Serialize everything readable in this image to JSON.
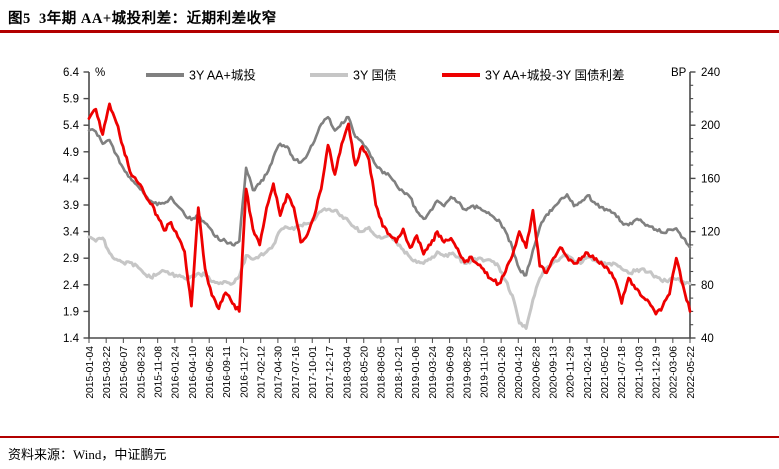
{
  "title": "图5  3年期 AA+城投利差：近期利差收窄",
  "source": "资料来源：Wind，中证鹏元",
  "colors": {
    "rule_red": "#b20000",
    "axis": "#4a4a4a",
    "series_citytou": "#808080",
    "series_treasury": "#c6c6c6",
    "series_spread": "#ee0000"
  },
  "chart_data": {
    "type": "line",
    "title": "",
    "left_axis": {
      "label": "%",
      "min": 1.4,
      "max": 6.4,
      "tick_step": 0.5,
      "ticks": [
        "6.4",
        "5.9",
        "5.4",
        "4.9",
        "4.4",
        "3.9",
        "3.4",
        "2.9",
        "2.4",
        "1.9",
        "1.4"
      ]
    },
    "right_axis": {
      "label": "BP",
      "min": 40,
      "max": 240,
      "tick_step": 40,
      "minor_step": 10,
      "ticks": [
        "240",
        "200",
        "160",
        "120",
        "80",
        "40"
      ]
    },
    "x_tick_labels": [
      "2015-01-04",
      "2015-03-22",
      "2015-06-07",
      "2015-08-23",
      "2015-11-08",
      "2016-01-24",
      "2016-04-10",
      "2016-06-26",
      "2016-09-11",
      "2016-11-27",
      "2017-02-12",
      "2017-04-30",
      "2017-07-16",
      "2017-10-01",
      "2017-12-17",
      "2018-03-04",
      "2018-05-20",
      "2018-08-05",
      "2018-10-21",
      "2019-01-06",
      "2019-03-24",
      "2019-06-09",
      "2019-08-25",
      "2019-11-10",
      "2020-01-26",
      "2020-04-12",
      "2020-06-28",
      "2020-09-13",
      "2020-11-29",
      "2021-02-14",
      "2021-05-02",
      "2021-07-18",
      "2021-10-03",
      "2021-12-19",
      "2022-03-06",
      "2022-05-22"
    ],
    "x_months": "monthly samples 2015-01 .. 2022-05 (89 points, read off chart)",
    "legend_position": "top",
    "grid": false,
    "series": [
      {
        "name": "3Y AA+城投",
        "axis": "left",
        "color": "#808080",
        "width": 2.6,
        "values": [
          5.3,
          5.28,
          5.05,
          5.12,
          4.85,
          4.6,
          4.42,
          4.28,
          4.12,
          3.98,
          3.9,
          3.93,
          4.05,
          3.88,
          3.72,
          3.62,
          3.7,
          3.56,
          3.42,
          3.25,
          3.22,
          3.15,
          3.22,
          4.6,
          4.18,
          4.3,
          4.48,
          4.8,
          5.05,
          5.0,
          4.75,
          4.7,
          4.85,
          5.1,
          5.42,
          5.55,
          5.3,
          5.45,
          5.55,
          5.18,
          5.08,
          4.9,
          4.65,
          4.5,
          4.45,
          4.28,
          4.15,
          4.05,
          3.78,
          3.64,
          3.8,
          3.98,
          3.88,
          4.05,
          3.95,
          3.82,
          3.88,
          3.85,
          3.78,
          3.7,
          3.62,
          3.4,
          3.1,
          2.7,
          2.58,
          3.05,
          3.48,
          3.72,
          3.85,
          4.0,
          4.1,
          3.88,
          3.95,
          4.08,
          3.95,
          3.86,
          3.8,
          3.74,
          3.58,
          3.52,
          3.62,
          3.58,
          3.5,
          3.44,
          3.38,
          3.44,
          3.46,
          3.28,
          3.1
        ]
      },
      {
        "name": "3Y 国债",
        "axis": "left",
        "color": "#c6c6c6",
        "width": 3.0,
        "values": [
          3.3,
          3.22,
          3.28,
          3.0,
          2.88,
          2.82,
          2.82,
          2.76,
          2.62,
          2.54,
          2.6,
          2.66,
          2.6,
          2.56,
          2.52,
          2.56,
          2.62,
          2.58,
          2.46,
          2.42,
          2.46,
          2.42,
          2.56,
          2.95,
          2.88,
          2.95,
          3.02,
          3.15,
          3.42,
          3.48,
          3.44,
          3.52,
          3.55,
          3.62,
          3.78,
          3.82,
          3.8,
          3.7,
          3.6,
          3.46,
          3.4,
          3.48,
          3.32,
          3.28,
          3.34,
          3.21,
          3.06,
          2.92,
          2.82,
          2.8,
          2.88,
          3.02,
          2.94,
          2.98,
          2.92,
          2.8,
          2.86,
          2.9,
          2.86,
          2.84,
          2.74,
          2.48,
          2.2,
          1.68,
          1.58,
          2.12,
          2.52,
          2.72,
          2.82,
          2.9,
          2.96,
          2.84,
          2.8,
          2.92,
          2.86,
          2.84,
          2.8,
          2.8,
          2.7,
          2.62,
          2.66,
          2.7,
          2.64,
          2.56,
          2.46,
          2.5,
          2.5,
          2.46,
          2.42
        ]
      },
      {
        "name": "3Y AA+城投-3Y 国债利差",
        "axis": "right",
        "color": "#ee0000",
        "width": 2.8,
        "values": [
          205,
          212,
          193,
          216,
          202,
          184,
          165,
          158,
          150,
          141,
          132,
          121,
          127,
          116,
          105,
          64,
          138,
          92,
          72,
          62,
          74,
          66,
          60,
          152,
          122,
          110,
          138,
          156,
          132,
          148,
          138,
          112,
          118,
          132,
          152,
          185,
          163,
          186,
          201,
          170,
          184,
          174,
          140,
          124,
          118,
          112,
          122,
          108,
          117,
          103,
          110,
          120,
          112,
          115,
          107,
          97,
          101,
          95,
          89,
          84,
          81,
          90,
          102,
          120,
          108,
          136,
          94,
          89,
          100,
          108,
          101,
          96,
          99,
          104,
          99,
          97,
          92,
          84,
          66,
          85,
          77,
          71,
          67,
          58,
          64,
          73,
          100,
          79,
          60
        ]
      }
    ]
  }
}
